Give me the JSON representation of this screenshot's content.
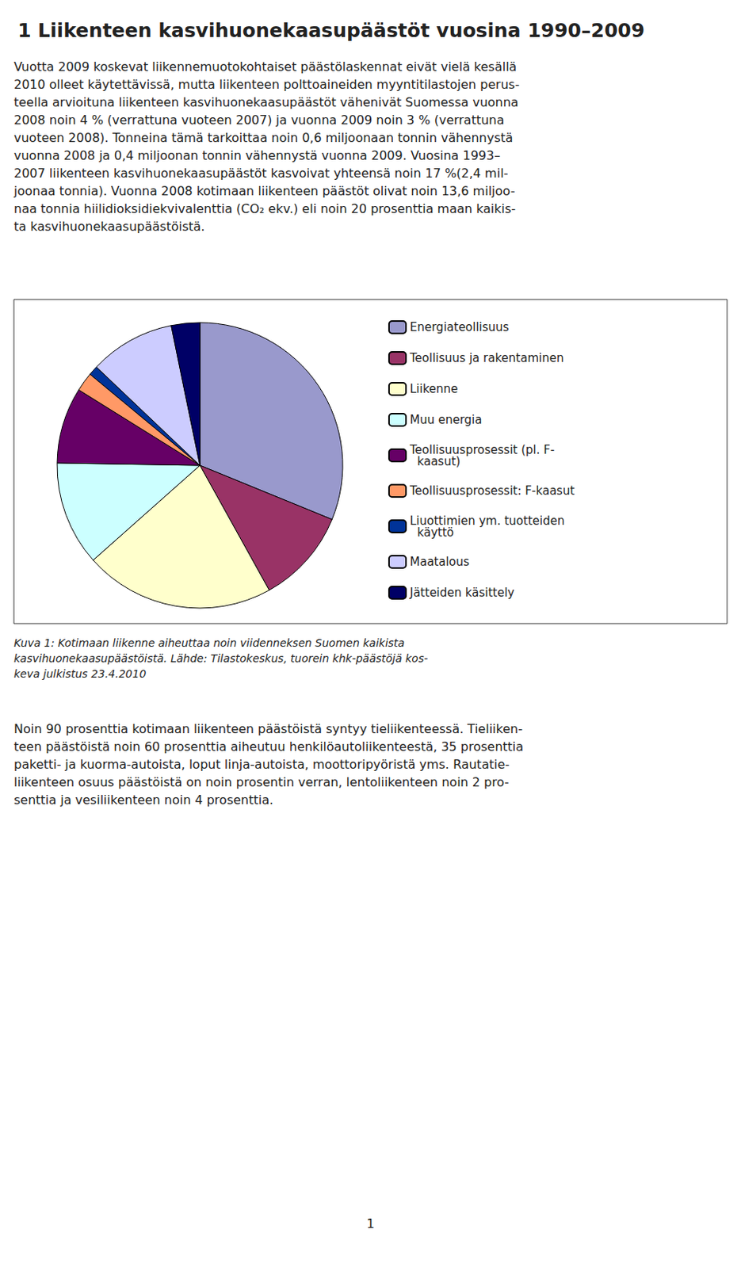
{
  "chart_data": {
    "type": "pie",
    "title": "1 Liikenteen kasvihuonekaasupäästöt vuosina 1990–2009",
    "categories": [
      "Energiateollisuus",
      "Teollisuus ja rakentaminen",
      "Liikenne",
      "Muu energia",
      "Teollisuusprosessit (pl. F-\n  kaasut)",
      "Teollisuusprosessit: F-kaasut",
      "Liuottimien ym. tuotteiden\n  käyttö",
      "Maatalous",
      "Jätteiden käsittely"
    ],
    "values": [
      29,
      10,
      20,
      11,
      8,
      2,
      1,
      9,
      3
    ],
    "colors": [
      "#9999CC",
      "#993366",
      "#FFFFCC",
      "#CCFFFF",
      "#660066",
      "#FF9966",
      "#003399",
      "#CCCCFF",
      "#000066"
    ],
    "legend": "right",
    "annotations": [
      "Vuotta 2009 koskevat liikennemuotokohtaiset päästölaskennat eivät vielä kesällä\n2010 olleet käytettävissä, mutta liikenteen polttoaineiden myyntitilastojen perus-\nteella arvioituna liikenteen kasvihuonekaasupäästöt vähenivät Suomessa vuonna\n2008 noin 4 % (verrattuna vuoteen 2007) ja vuonna 2009 noin 3 % (verrattuna\nvuoteen 2008). Tonneina tämä tarkoittaa noin 0,6 miljoonaan tonnin vähennystä\nvuonna 2008 ja 0,4 miljoonan tonnin vähennystä vuonna 2009. Vuosina 1993–\n2007 liikenteen kasvihuonekaasupäästöt kasvoivat yhteensä noin 17 %(2,4 mil-\njoonaa tonnia). Vuonna 2008 kotimaan liikenteen päästöt olivat noin 13,6 miljoo-\nnaa tonnia hiilidioksidiekvivalenttia (CO₂ ekv.) eli noin 20 prosenttia maan kaikis-\nta kasvihuonekaasupäästöistä.",
      "Kuva 1: Kotimaan liikenne aiheuttaa noin viidenneksen Suomen kaikista\nkasvihuonekaasupäästöistä. Lähde: Tilastokeskus, tuorein khk-päästöjä kos-\nkeva julkistus 23.4.2010",
      "Noin 90 prosenttia kotimaan liikenteen päästöistä syntyy tieliikenteessä. Tieliiken-\nteen päästöistä noin 60 prosenttia aiheutuu henkilöautoliikenteestä, 35 prosenttia\npaketti- ja kuorma-autoista, loput linja-autoista, moottoripyöristä yms. Rautatie-\nliikenteen osuus päästöistä on noin prosentin verran, lentoliikenteen noin 2 pro-\nsenttia ja vesiliikenteen noin 4 prosenttia.",
      "1"
    ]
  }
}
